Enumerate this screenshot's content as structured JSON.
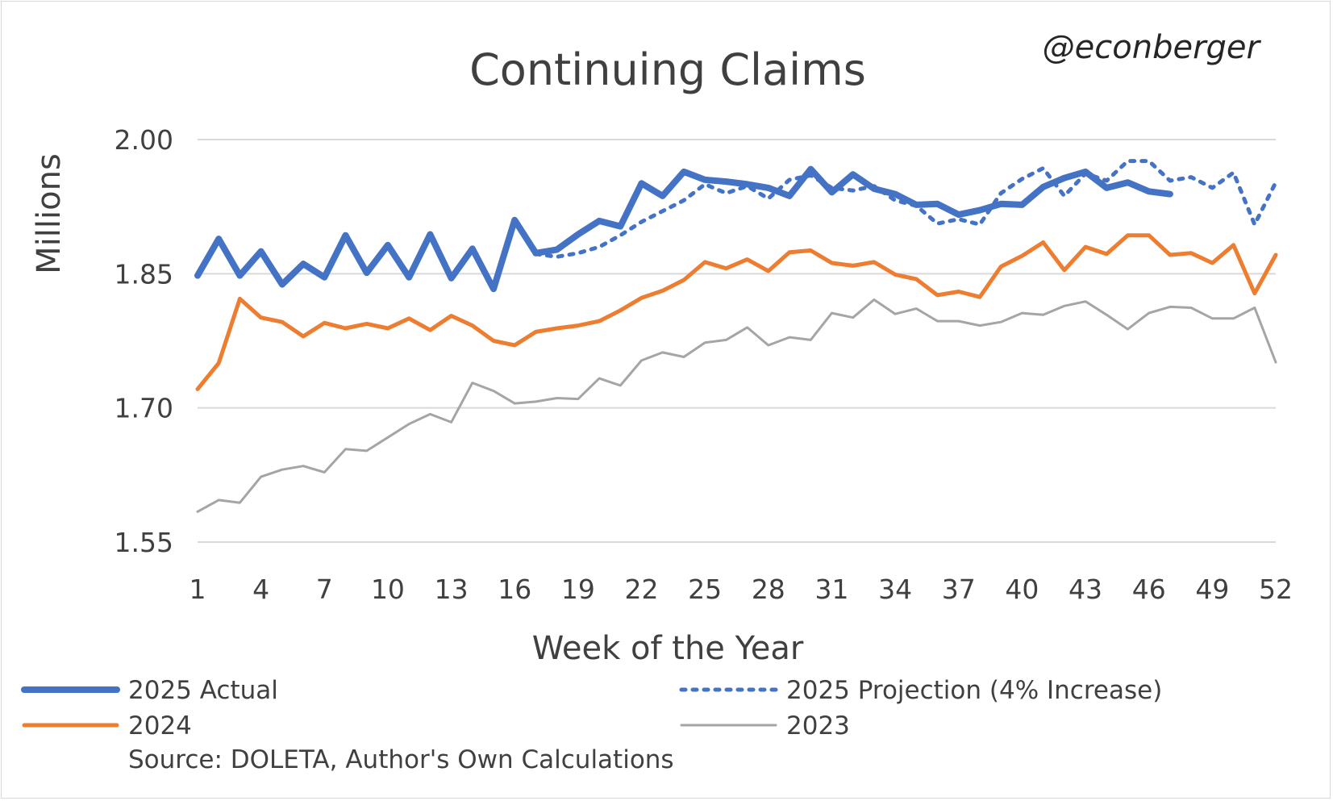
{
  "chart_data": {
    "type": "line",
    "title": "Continuing Claims",
    "watermark": "@econberger",
    "xlabel": "Week of the Year",
    "ylabel": "Millions",
    "source": "Source: DOLETA, Author's Own Calculations",
    "xlim": [
      1,
      52
    ],
    "ylim": [
      1.55,
      2.0
    ],
    "yticks": [
      "1.55",
      "1.70",
      "1.85",
      "2.00"
    ],
    "ytick_values": [
      1.55,
      1.7,
      1.85,
      2.0
    ],
    "xticks": [
      1,
      4,
      7,
      10,
      13,
      16,
      19,
      22,
      25,
      28,
      31,
      34,
      37,
      40,
      43,
      46,
      49,
      52
    ],
    "grid": true,
    "legend_placement": "bottom",
    "series": [
      {
        "name": "2023",
        "color": "#a5a5a5",
        "style": "solid",
        "width": "thin",
        "x": [
          1,
          2,
          3,
          4,
          5,
          6,
          7,
          8,
          9,
          10,
          11,
          12,
          13,
          14,
          15,
          16,
          17,
          18,
          19,
          20,
          21,
          22,
          23,
          24,
          25,
          26,
          27,
          28,
          29,
          30,
          31,
          32,
          33,
          34,
          35,
          36,
          37,
          38,
          39,
          40,
          41,
          42,
          43,
          44,
          45,
          46,
          47,
          48,
          49,
          50,
          51,
          52
        ],
        "values": [
          1.584,
          1.597,
          1.594,
          1.623,
          1.631,
          1.635,
          1.628,
          1.654,
          1.652,
          1.667,
          1.682,
          1.693,
          1.684,
          1.728,
          1.719,
          1.705,
          1.707,
          1.711,
          1.71,
          1.733,
          1.725,
          1.753,
          1.762,
          1.757,
          1.773,
          1.776,
          1.79,
          1.77,
          1.779,
          1.776,
          1.806,
          1.801,
          1.821,
          1.805,
          1.811,
          1.797,
          1.797,
          1.792,
          1.796,
          1.806,
          1.804,
          1.814,
          1.819,
          1.804,
          1.788,
          1.806,
          1.813,
          1.812,
          1.8,
          1.8,
          1.812,
          1.751
        ]
      },
      {
        "name": "2024",
        "color": "#ed7d31",
        "style": "solid",
        "width": "medium",
        "x": [
          1,
          2,
          3,
          4,
          5,
          6,
          7,
          8,
          9,
          10,
          11,
          12,
          13,
          14,
          15,
          16,
          17,
          18,
          19,
          20,
          21,
          22,
          23,
          24,
          25,
          26,
          27,
          28,
          29,
          30,
          31,
          32,
          33,
          34,
          35,
          36,
          37,
          38,
          39,
          40,
          41,
          42,
          43,
          44,
          45,
          46,
          47,
          48,
          49,
          50,
          51,
          52
        ],
        "values": [
          1.721,
          1.75,
          1.822,
          1.801,
          1.796,
          1.78,
          1.795,
          1.789,
          1.794,
          1.789,
          1.8,
          1.787,
          1.803,
          1.792,
          1.775,
          1.77,
          1.785,
          1.789,
          1.792,
          1.797,
          1.809,
          1.823,
          1.831,
          1.843,
          1.863,
          1.856,
          1.866,
          1.853,
          1.874,
          1.876,
          1.862,
          1.859,
          1.863,
          1.849,
          1.844,
          1.826,
          1.83,
          1.824,
          1.858,
          1.87,
          1.885,
          1.854,
          1.88,
          1.872,
          1.893,
          1.893,
          1.871,
          1.873,
          1.862,
          1.882,
          1.828,
          1.871
        ]
      },
      {
        "name": "2025 Projection (4% Increase)",
        "color": "#4472c4",
        "style": "dotted",
        "width": "medium",
        "x": [
          17,
          18,
          19,
          20,
          21,
          22,
          23,
          24,
          25,
          26,
          27,
          28,
          29,
          30,
          31,
          32,
          33,
          34,
          35,
          36,
          37,
          38,
          39,
          40,
          41,
          42,
          43,
          44,
          45,
          46,
          47,
          48,
          49,
          50,
          51,
          52
        ],
        "values": [
          1.872,
          1.869,
          1.873,
          1.88,
          1.893,
          1.908,
          1.92,
          1.932,
          1.95,
          1.94,
          1.948,
          1.934,
          1.955,
          1.96,
          1.946,
          1.943,
          1.948,
          1.932,
          1.926,
          1.906,
          1.911,
          1.905,
          1.94,
          1.956,
          1.968,
          1.937,
          1.962,
          1.954,
          1.976,
          1.976,
          1.954,
          1.958,
          1.946,
          1.963,
          1.905,
          1.952
        ]
      },
      {
        "name": "2025 Actual",
        "color": "#4472c4",
        "style": "solid",
        "width": "thick",
        "x": [
          1,
          2,
          3,
          4,
          5,
          6,
          7,
          8,
          9,
          10,
          11,
          12,
          13,
          14,
          15,
          16,
          17,
          18,
          19,
          20,
          21,
          22,
          23,
          24,
          25,
          26,
          27,
          28,
          29,
          30,
          31,
          32,
          33,
          34,
          35,
          36,
          37,
          38,
          39,
          40,
          41,
          42,
          43,
          44,
          45,
          46,
          47
        ],
        "values": [
          1.848,
          1.889,
          1.848,
          1.875,
          1.838,
          1.861,
          1.846,
          1.893,
          1.851,
          1.882,
          1.846,
          1.894,
          1.845,
          1.878,
          1.833,
          1.91,
          1.873,
          1.877,
          1.894,
          1.909,
          1.903,
          1.951,
          1.937,
          1.964,
          1.955,
          1.953,
          1.95,
          1.946,
          1.937,
          1.967,
          1.941,
          1.961,
          1.945,
          1.939,
          1.927,
          1.928,
          1.916,
          1.921,
          1.928,
          1.927,
          1.947,
          1.957,
          1.964,
          1.946,
          1.952,
          1.942,
          1.939
        ]
      }
    ]
  },
  "legend": [
    {
      "label": "2025 Actual",
      "color": "#4472c4",
      "style": "solid",
      "width": "thick"
    },
    {
      "label": "2025 Projection (4% Increase)",
      "color": "#4472c4",
      "style": "dotted",
      "width": "medium"
    },
    {
      "label": "2024",
      "color": "#ed7d31",
      "style": "solid",
      "width": "medium"
    },
    {
      "label": "2023",
      "color": "#a5a5a5",
      "style": "solid",
      "width": "thin"
    }
  ]
}
